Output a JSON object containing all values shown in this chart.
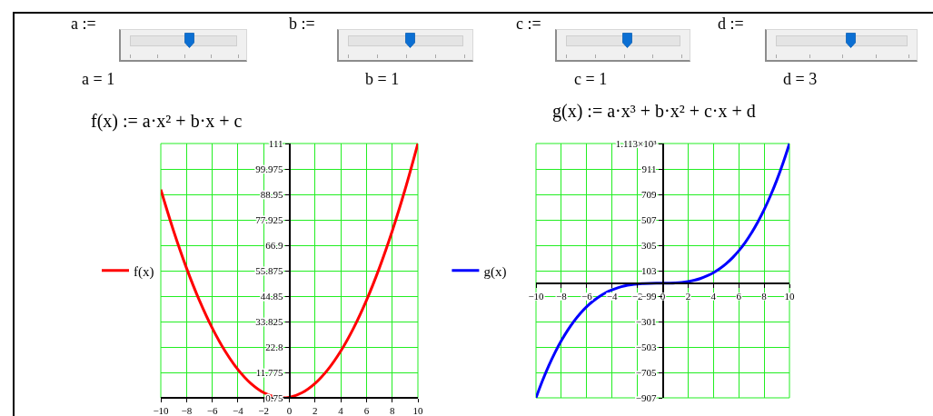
{
  "chart_data": [
    {
      "type": "other",
      "annotations": [
        "a :=",
        "a = 1",
        "b :=",
        "b = 1",
        "c :=",
        "c = 1",
        "d :=",
        "d = 3"
      ]
    },
    {
      "type": "line",
      "title": "f(x) := a·x² + b·x + c",
      "x": [
        -10,
        -9,
        -8,
        -7,
        -6,
        -5,
        -4,
        -3,
        -2,
        -1,
        0,
        1,
        2,
        3,
        4,
        5,
        6,
        7,
        8,
        9,
        10
      ],
      "series": [
        {
          "name": "f(x)",
          "color": "#ff0000",
          "values": [
            91,
            73,
            57,
            43,
            31,
            21,
            13,
            7,
            3,
            1,
            1,
            3,
            7,
            13,
            21,
            31,
            43,
            57,
            73,
            91,
            111
          ]
        }
      ],
      "xlim": [
        -10,
        10
      ],
      "xticks": [
        {
          "value": -10,
          "label": "−10"
        },
        {
          "value": -8,
          "label": "−8"
        },
        {
          "value": -6,
          "label": "−6"
        },
        {
          "value": -4,
          "label": "−4"
        },
        {
          "value": -2,
          "label": "−2"
        },
        0,
        2,
        4,
        6,
        8,
        10
      ],
      "ylim": [
        0.75,
        111
      ],
      "yticks": [
        0.75,
        11.775,
        22.8,
        33.825,
        44.85,
        55.875,
        66.9,
        77.925,
        88.95,
        99.975,
        111
      ],
      "grid": true,
      "legend": "left"
    },
    {
      "type": "line",
      "title": "g(x) := a·x³ + b·x² + c·x + d",
      "x": [
        -10,
        -9.5,
        -9,
        -8.5,
        -8,
        -7.5,
        -7,
        -6.5,
        -6,
        -5.5,
        -5,
        -4.5,
        -4,
        -3.5,
        -3,
        -2.5,
        -2,
        -1.5,
        -1,
        -0.5,
        0,
        0.5,
        1,
        1.5,
        2,
        2.5,
        3,
        3.5,
        4,
        4.5,
        5,
        5.5,
        6,
        6.5,
        7,
        7.5,
        8,
        8.5,
        9,
        9.5,
        10
      ],
      "series": [
        {
          "name": "g(x)",
          "color": "#0000ff",
          "values": [
            -907,
            -774,
            -654,
            -547,
            -453,
            -370,
            -298,
            -236,
            -183,
            -139,
            -102,
            -72,
            -49,
            -31,
            -18,
            -9,
            -3,
            0,
            2,
            3,
            3,
            4,
            6,
            10,
            17,
            27,
            42,
            62,
            87,
            119,
            158,
            205,
            261,
            326,
            402,
            489,
            587,
            698,
            822,
            960,
            1113
          ]
        }
      ],
      "xlim": [
        -10,
        10
      ],
      "xticks": [
        {
          "value": -10,
          "label": "−10"
        },
        {
          "value": -8,
          "label": "−8"
        },
        {
          "value": -6,
          "label": "−6"
        },
        {
          "value": -4,
          "label": "−4"
        },
        {
          "value": -2,
          "label": "−2"
        },
        0,
        2,
        4,
        6,
        8,
        10
      ],
      "ylim": [
        -907,
        1113
      ],
      "yticks": [
        {
          "value": -907,
          "label": "−907"
        },
        {
          "value": -705,
          "label": "−705"
        },
        {
          "value": -503,
          "label": "−503"
        },
        {
          "value": -301,
          "label": "−301"
        },
        {
          "value": -99,
          "label": "−99"
        },
        103,
        305,
        507,
        709,
        911,
        {
          "value": 1113,
          "label": "1.113×10³"
        }
      ],
      "grid": true,
      "legend": "left"
    }
  ]
}
